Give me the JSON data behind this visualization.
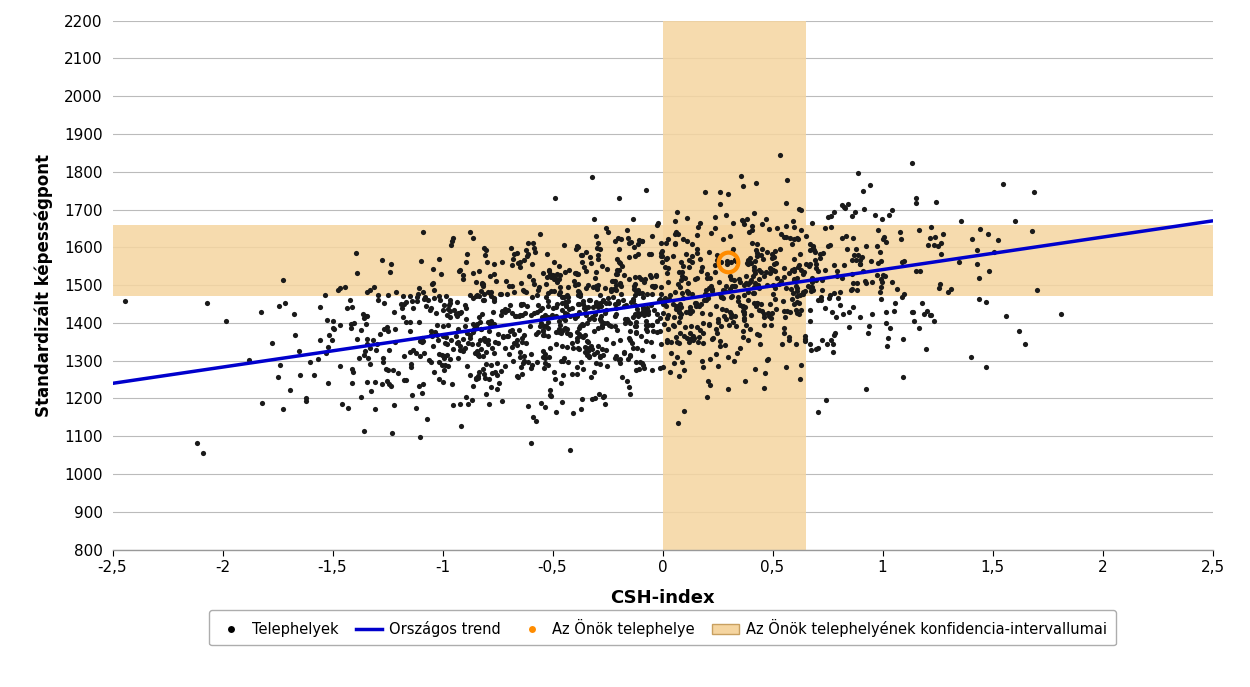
{
  "title": "",
  "xlabel": "CSH-index",
  "ylabel": "Standardizált képességpont",
  "xlim": [
    -2.5,
    2.5
  ],
  "ylim": [
    800,
    2200
  ],
  "yticks": [
    800,
    900,
    1000,
    1100,
    1200,
    1300,
    1400,
    1500,
    1600,
    1700,
    1800,
    1900,
    2000,
    2100,
    2200
  ],
  "xticks": [
    -2.5,
    -2.0,
    -1.5,
    -1.0,
    -0.5,
    0.0,
    0.5,
    1.0,
    1.5,
    2.0,
    2.5
  ],
  "xtick_labels": [
    "-2,5",
    "-2",
    "-1,5",
    "-1",
    "-0,5",
    "0",
    "0,5",
    "1",
    "1,5",
    "2",
    "2,5"
  ],
  "trend_x": [
    -2.5,
    2.5
  ],
  "trend_y": [
    1240,
    1670
  ],
  "trend_color": "#0000CC",
  "scatter_color": "#1A1A1A",
  "scatter_size": 14,
  "highlight_x": 0.3,
  "highlight_y": 1560,
  "highlight_color": "#FF8C00",
  "highlight_size": 200,
  "conf_x_min": 0.0,
  "conf_x_max": 0.65,
  "conf_y_min": 1470,
  "conf_y_max": 1660,
  "conf_color": "#F5D5A0",
  "conf_alpha": 0.85,
  "background_color": "#FFFFFF",
  "grid_color": "#BBBBBB",
  "legend_items": [
    "Telephelyek",
    "Országos trend",
    "Az Önök telephelye",
    "Az Önök telephelyének konfidencia-intervallumai"
  ],
  "seed": 42,
  "n_points": 1500
}
